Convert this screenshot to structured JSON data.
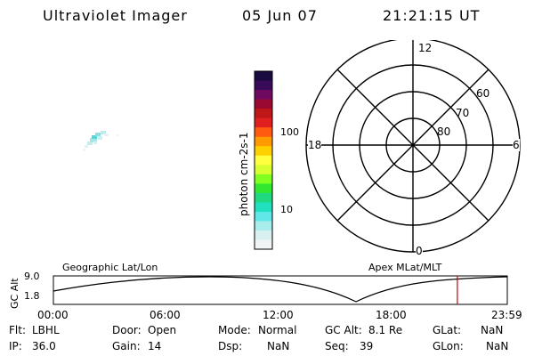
{
  "header": {
    "instrument": "Ultraviolet Imager",
    "date": "05 Jun 07",
    "time": "21:21:15 UT"
  },
  "colorbar": {
    "label": "photon cm-2s-1",
    "ticks": [
      "100",
      "10"
    ],
    "colors": [
      "#1a0a40",
      "#3a0a5a",
      "#700a60",
      "#9a0a30",
      "#c01818",
      "#e02020",
      "#ff5a10",
      "#ff9a00",
      "#ffd000",
      "#ffff40",
      "#d8ff30",
      "#80ff20",
      "#30e830",
      "#20d880",
      "#20e0c0",
      "#60e8e8",
      "#a8ecec",
      "#d8f0f0",
      "#f0f4f4"
    ]
  },
  "polar": {
    "mlt_labels": [
      "12",
      "18",
      "6",
      "0"
    ],
    "lat_labels": [
      "60",
      "70",
      "80"
    ]
  },
  "timeline": {
    "left_label": "Geographic Lat/Lon",
    "right_label": "Apex MLat/MLT",
    "y_axis_label": "GC Alt",
    "y_ticks": [
      "9.0",
      "1.8"
    ],
    "x_ticks": [
      "00:00",
      "06:00",
      "12:00",
      "18:00",
      "23:59"
    ],
    "marker_color": "#cc0000",
    "marker_time_fraction": 0.89
  },
  "status": {
    "flt": {
      "label": "Flt:",
      "value": "LBHL"
    },
    "ip": {
      "label": "IP:",
      "value": "36.0"
    },
    "door": {
      "label": "Door:",
      "value": "Open"
    },
    "gain": {
      "label": "Gain:",
      "value": "14"
    },
    "mode": {
      "label": "Mode:",
      "value": "Normal"
    },
    "dsp": {
      "label": "Dsp:",
      "value": "NaN"
    },
    "gcalt": {
      "label": "GC Alt:",
      "value": "8.1 Re"
    },
    "seq": {
      "label": "Seq:",
      "value": "39"
    },
    "glat": {
      "label": "GLat:",
      "value": "NaN"
    },
    "glon": {
      "label": "GLon:",
      "value": "NaN"
    }
  }
}
